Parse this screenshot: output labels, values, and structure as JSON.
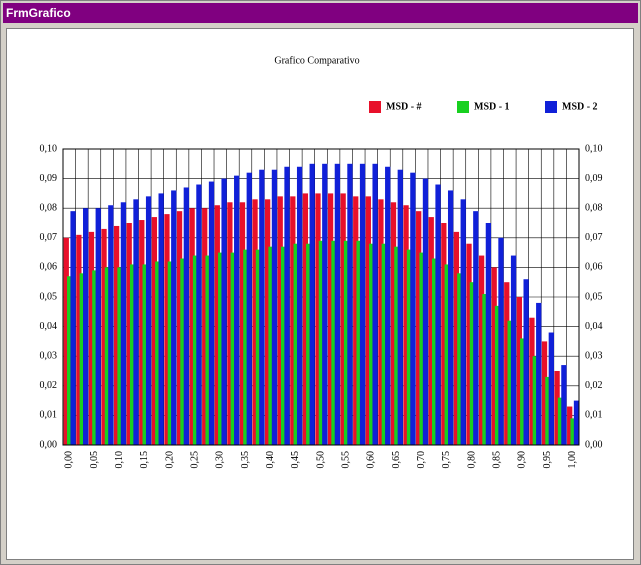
{
  "window_title": "FrmGrafico",
  "chart_data": {
    "type": "bar",
    "title": "Grafico Comparativo",
    "categories": [
      "0,00",
      null,
      "0,05",
      null,
      "0,10",
      null,
      "0,15",
      null,
      "0,20",
      null,
      "0,25",
      null,
      "0,30",
      null,
      "0,35",
      null,
      "0,40",
      null,
      "0,45",
      null,
      "0,50",
      null,
      "0,55",
      null,
      "0,60",
      null,
      "0,65",
      null,
      "0,70",
      null,
      "0,75",
      null,
      "0,80",
      null,
      "0,85",
      null,
      "0,90",
      null,
      "0,95",
      null,
      "1,00"
    ],
    "series": [
      {
        "name": "MSD - #",
        "color": "#e8102a",
        "values": [
          0.07,
          0.071,
          0.072,
          0.073,
          0.074,
          0.075,
          0.076,
          0.077,
          0.078,
          0.079,
          0.08,
          0.08,
          0.081,
          0.082,
          0.082,
          0.083,
          0.083,
          0.084,
          0.084,
          0.085,
          0.085,
          0.085,
          0.085,
          0.084,
          0.084,
          0.083,
          0.082,
          0.081,
          0.079,
          0.077,
          0.075,
          0.072,
          0.068,
          0.064,
          0.06,
          0.055,
          0.05,
          0.043,
          0.035,
          0.025,
          0.013
        ]
      },
      {
        "name": "MSD - 1",
        "color": "#18d020",
        "values": [
          0.057,
          0.058,
          0.059,
          0.06,
          0.06,
          0.061,
          0.061,
          0.062,
          0.062,
          0.063,
          0.064,
          0.064,
          0.065,
          0.065,
          0.066,
          0.066,
          0.067,
          0.067,
          0.068,
          0.068,
          0.069,
          0.069,
          0.069,
          0.069,
          0.068,
          0.068,
          0.067,
          0.066,
          0.065,
          0.063,
          0.061,
          0.058,
          0.055,
          0.051,
          0.047,
          0.042,
          0.036,
          0.03,
          0.023,
          0.016,
          0.009
        ]
      },
      {
        "name": "MSD - 2",
        "color": "#1020d8",
        "values": [
          0.079,
          0.08,
          0.08,
          0.081,
          0.082,
          0.083,
          0.084,
          0.085,
          0.086,
          0.087,
          0.088,
          0.089,
          0.09,
          0.091,
          0.092,
          0.093,
          0.093,
          0.094,
          0.094,
          0.095,
          0.095,
          0.095,
          0.095,
          0.095,
          0.095,
          0.094,
          0.093,
          0.092,
          0.09,
          0.088,
          0.086,
          0.083,
          0.079,
          0.075,
          0.07,
          0.064,
          0.056,
          0.048,
          0.038,
          0.027,
          0.015
        ]
      }
    ],
    "ylim": [
      0,
      0.1
    ],
    "yticks": [
      {
        "value": 0,
        "label": "0,00"
      },
      {
        "value": 0.01,
        "label": "0,01"
      },
      {
        "value": 0.02,
        "label": "0,02"
      },
      {
        "value": 0.03,
        "label": "0,03"
      },
      {
        "value": 0.04,
        "label": "0,04"
      },
      {
        "value": 0.05,
        "label": "0,05"
      },
      {
        "value": 0.06,
        "label": "0,06"
      },
      {
        "value": 0.07,
        "label": "0,07"
      },
      {
        "value": 0.08,
        "label": "0,08"
      },
      {
        "value": 0.09,
        "label": "0,09"
      },
      {
        "value": 0.1,
        "label": "0,10"
      }
    ],
    "grid": true,
    "legend": "top-right"
  }
}
